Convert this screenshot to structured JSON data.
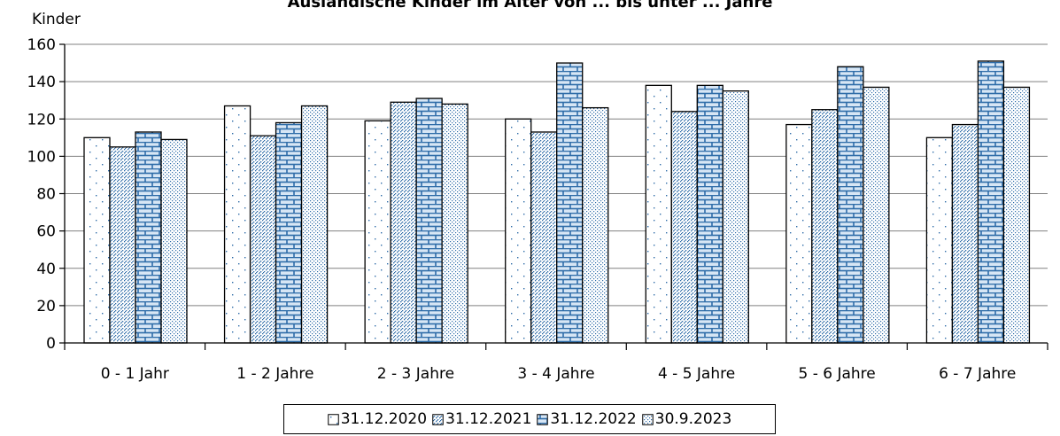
{
  "chart_data": {
    "type": "bar",
    "title": "Ausländische Kinder im Alter von ... bis unter ... Jahre",
    "ylabel": "Kinder",
    "xlabel": "",
    "ylim": [
      0,
      160
    ],
    "yticks": [
      0,
      20,
      40,
      60,
      80,
      100,
      120,
      140,
      160
    ],
    "grid": true,
    "legend_position": "bottom",
    "categories": [
      "0 - 1 Jahr",
      "1 - 2 Jahre",
      "2 - 3 Jahre",
      "3 - 4 Jahre",
      "4 - 5 Jahre",
      "5 - 6 Jahre",
      "6 - 7 Jahre"
    ],
    "series": [
      {
        "name": "31.12.2020",
        "pattern": "sparse-dots",
        "values": [
          110,
          127,
          119,
          120,
          138,
          117,
          110
        ]
      },
      {
        "name": "31.12.2021",
        "pattern": "diagonal-dots",
        "values": [
          105,
          111,
          129,
          113,
          124,
          125,
          117
        ]
      },
      {
        "name": "31.12.2022",
        "pattern": "brick",
        "values": [
          113,
          118,
          131,
          150,
          138,
          148,
          151
        ]
      },
      {
        "name": "30.9.2023",
        "pattern": "dense-dots",
        "values": [
          109,
          127,
          128,
          126,
          135,
          137,
          137
        ]
      }
    ],
    "colors": {
      "pattern": "#2e6ca8",
      "background": "#ffffff",
      "grid": "#808080",
      "outline": "#000000"
    }
  }
}
